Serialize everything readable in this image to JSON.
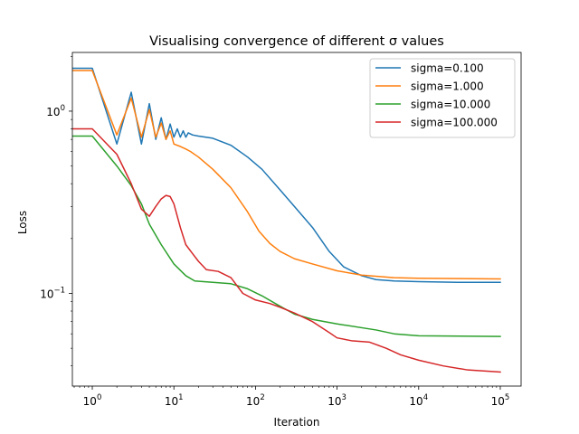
{
  "chart_data": {
    "type": "line",
    "title": "Visualising convergence of different σ values",
    "xlabel": "Iteration",
    "ylabel": "Loss",
    "xscale": "log",
    "yscale": "log",
    "xlim": [
      0.57,
      180000
    ],
    "ylim": [
      0.031,
      2.1
    ],
    "grid": false,
    "legend_position": "top-right",
    "x_ticks": [
      {
        "value": 1,
        "base": "10",
        "exp": "0"
      },
      {
        "value": 10,
        "base": "10",
        "exp": "1"
      },
      {
        "value": 100,
        "base": "10",
        "exp": "2"
      },
      {
        "value": 1000,
        "base": "10",
        "exp": "3"
      },
      {
        "value": 10000,
        "base": "10",
        "exp": "4"
      },
      {
        "value": 100000,
        "base": "10",
        "exp": "5"
      }
    ],
    "y_ticks": [
      {
        "value": 0.1,
        "base": "10",
        "exp": "−1"
      },
      {
        "value": 1,
        "base": "10",
        "exp": "0"
      }
    ],
    "series": [
      {
        "name": "sigma=0.100",
        "color": "#1f77b4",
        "points": [
          [
            0.57,
            1.72
          ],
          [
            1,
            1.72
          ],
          [
            2,
            0.66
          ],
          [
            3,
            1.27
          ],
          [
            4,
            0.66
          ],
          [
            5,
            1.1
          ],
          [
            6,
            0.7
          ],
          [
            7,
            0.92
          ],
          [
            8,
            0.7
          ],
          [
            9,
            0.85
          ],
          [
            10,
            0.72
          ],
          [
            11,
            0.8
          ],
          [
            12,
            0.72
          ],
          [
            13,
            0.78
          ],
          [
            14,
            0.72
          ],
          [
            15,
            0.76
          ],
          [
            17,
            0.74
          ],
          [
            20,
            0.73
          ],
          [
            30,
            0.71
          ],
          [
            50,
            0.65
          ],
          [
            80,
            0.56
          ],
          [
            120,
            0.48
          ],
          [
            200,
            0.37
          ],
          [
            300,
            0.3
          ],
          [
            500,
            0.23
          ],
          [
            800,
            0.17
          ],
          [
            1200,
            0.14
          ],
          [
            2000,
            0.125
          ],
          [
            3000,
            0.119
          ],
          [
            5000,
            0.117
          ],
          [
            10000,
            0.116
          ],
          [
            30000,
            0.115
          ],
          [
            100000,
            0.115
          ]
        ]
      },
      {
        "name": "sigma=1.000",
        "color": "#ff7f0e",
        "points": [
          [
            0.57,
            1.67
          ],
          [
            1,
            1.67
          ],
          [
            2,
            0.74
          ],
          [
            3,
            1.18
          ],
          [
            4,
            0.72
          ],
          [
            5,
            1.02
          ],
          [
            6,
            0.72
          ],
          [
            7,
            0.86
          ],
          [
            8,
            0.7
          ],
          [
            9,
            0.78
          ],
          [
            10,
            0.66
          ],
          [
            12,
            0.64
          ],
          [
            14,
            0.62
          ],
          [
            16,
            0.6
          ],
          [
            20,
            0.56
          ],
          [
            30,
            0.48
          ],
          [
            50,
            0.38
          ],
          [
            80,
            0.28
          ],
          [
            110,
            0.22
          ],
          [
            150,
            0.188
          ],
          [
            200,
            0.17
          ],
          [
            300,
            0.155
          ],
          [
            500,
            0.145
          ],
          [
            1000,
            0.133
          ],
          [
            2000,
            0.126
          ],
          [
            5000,
            0.122
          ],
          [
            10000,
            0.121
          ],
          [
            100000,
            0.12
          ]
        ]
      },
      {
        "name": "sigma=10.000",
        "color": "#2ca02c",
        "points": [
          [
            0.57,
            0.73
          ],
          [
            1,
            0.73
          ],
          [
            2,
            0.5
          ],
          [
            3,
            0.39
          ],
          [
            4,
            0.31
          ],
          [
            5,
            0.24
          ],
          [
            7,
            0.185
          ],
          [
            10,
            0.145
          ],
          [
            14,
            0.125
          ],
          [
            18,
            0.117
          ],
          [
            30,
            0.115
          ],
          [
            50,
            0.113
          ],
          [
            80,
            0.106
          ],
          [
            120,
            0.097
          ],
          [
            200,
            0.085
          ],
          [
            300,
            0.077
          ],
          [
            500,
            0.072
          ],
          [
            1000,
            0.068
          ],
          [
            3000,
            0.063
          ],
          [
            5000,
            0.06
          ],
          [
            10000,
            0.0585
          ],
          [
            100000,
            0.058
          ]
        ]
      },
      {
        "name": "sigma=100.000",
        "color": "#d62728",
        "points": [
          [
            0.57,
            0.8
          ],
          [
            1,
            0.8
          ],
          [
            2,
            0.58
          ],
          [
            3,
            0.4
          ],
          [
            4,
            0.29
          ],
          [
            5,
            0.265
          ],
          [
            6,
            0.3
          ],
          [
            7,
            0.33
          ],
          [
            8,
            0.345
          ],
          [
            9,
            0.34
          ],
          [
            10,
            0.31
          ],
          [
            12,
            0.23
          ],
          [
            14,
            0.185
          ],
          [
            17,
            0.165
          ],
          [
            20,
            0.15
          ],
          [
            25,
            0.135
          ],
          [
            35,
            0.132
          ],
          [
            50,
            0.122
          ],
          [
            70,
            0.1
          ],
          [
            100,
            0.092
          ],
          [
            150,
            0.088
          ],
          [
            200,
            0.084
          ],
          [
            300,
            0.078
          ],
          [
            500,
            0.07
          ],
          [
            800,
            0.061
          ],
          [
            1000,
            0.057
          ],
          [
            1500,
            0.055
          ],
          [
            2500,
            0.054
          ],
          [
            4000,
            0.05
          ],
          [
            6000,
            0.046
          ],
          [
            10000,
            0.043
          ],
          [
            20000,
            0.04
          ],
          [
            40000,
            0.038
          ],
          [
            100000,
            0.037
          ]
        ]
      }
    ]
  }
}
